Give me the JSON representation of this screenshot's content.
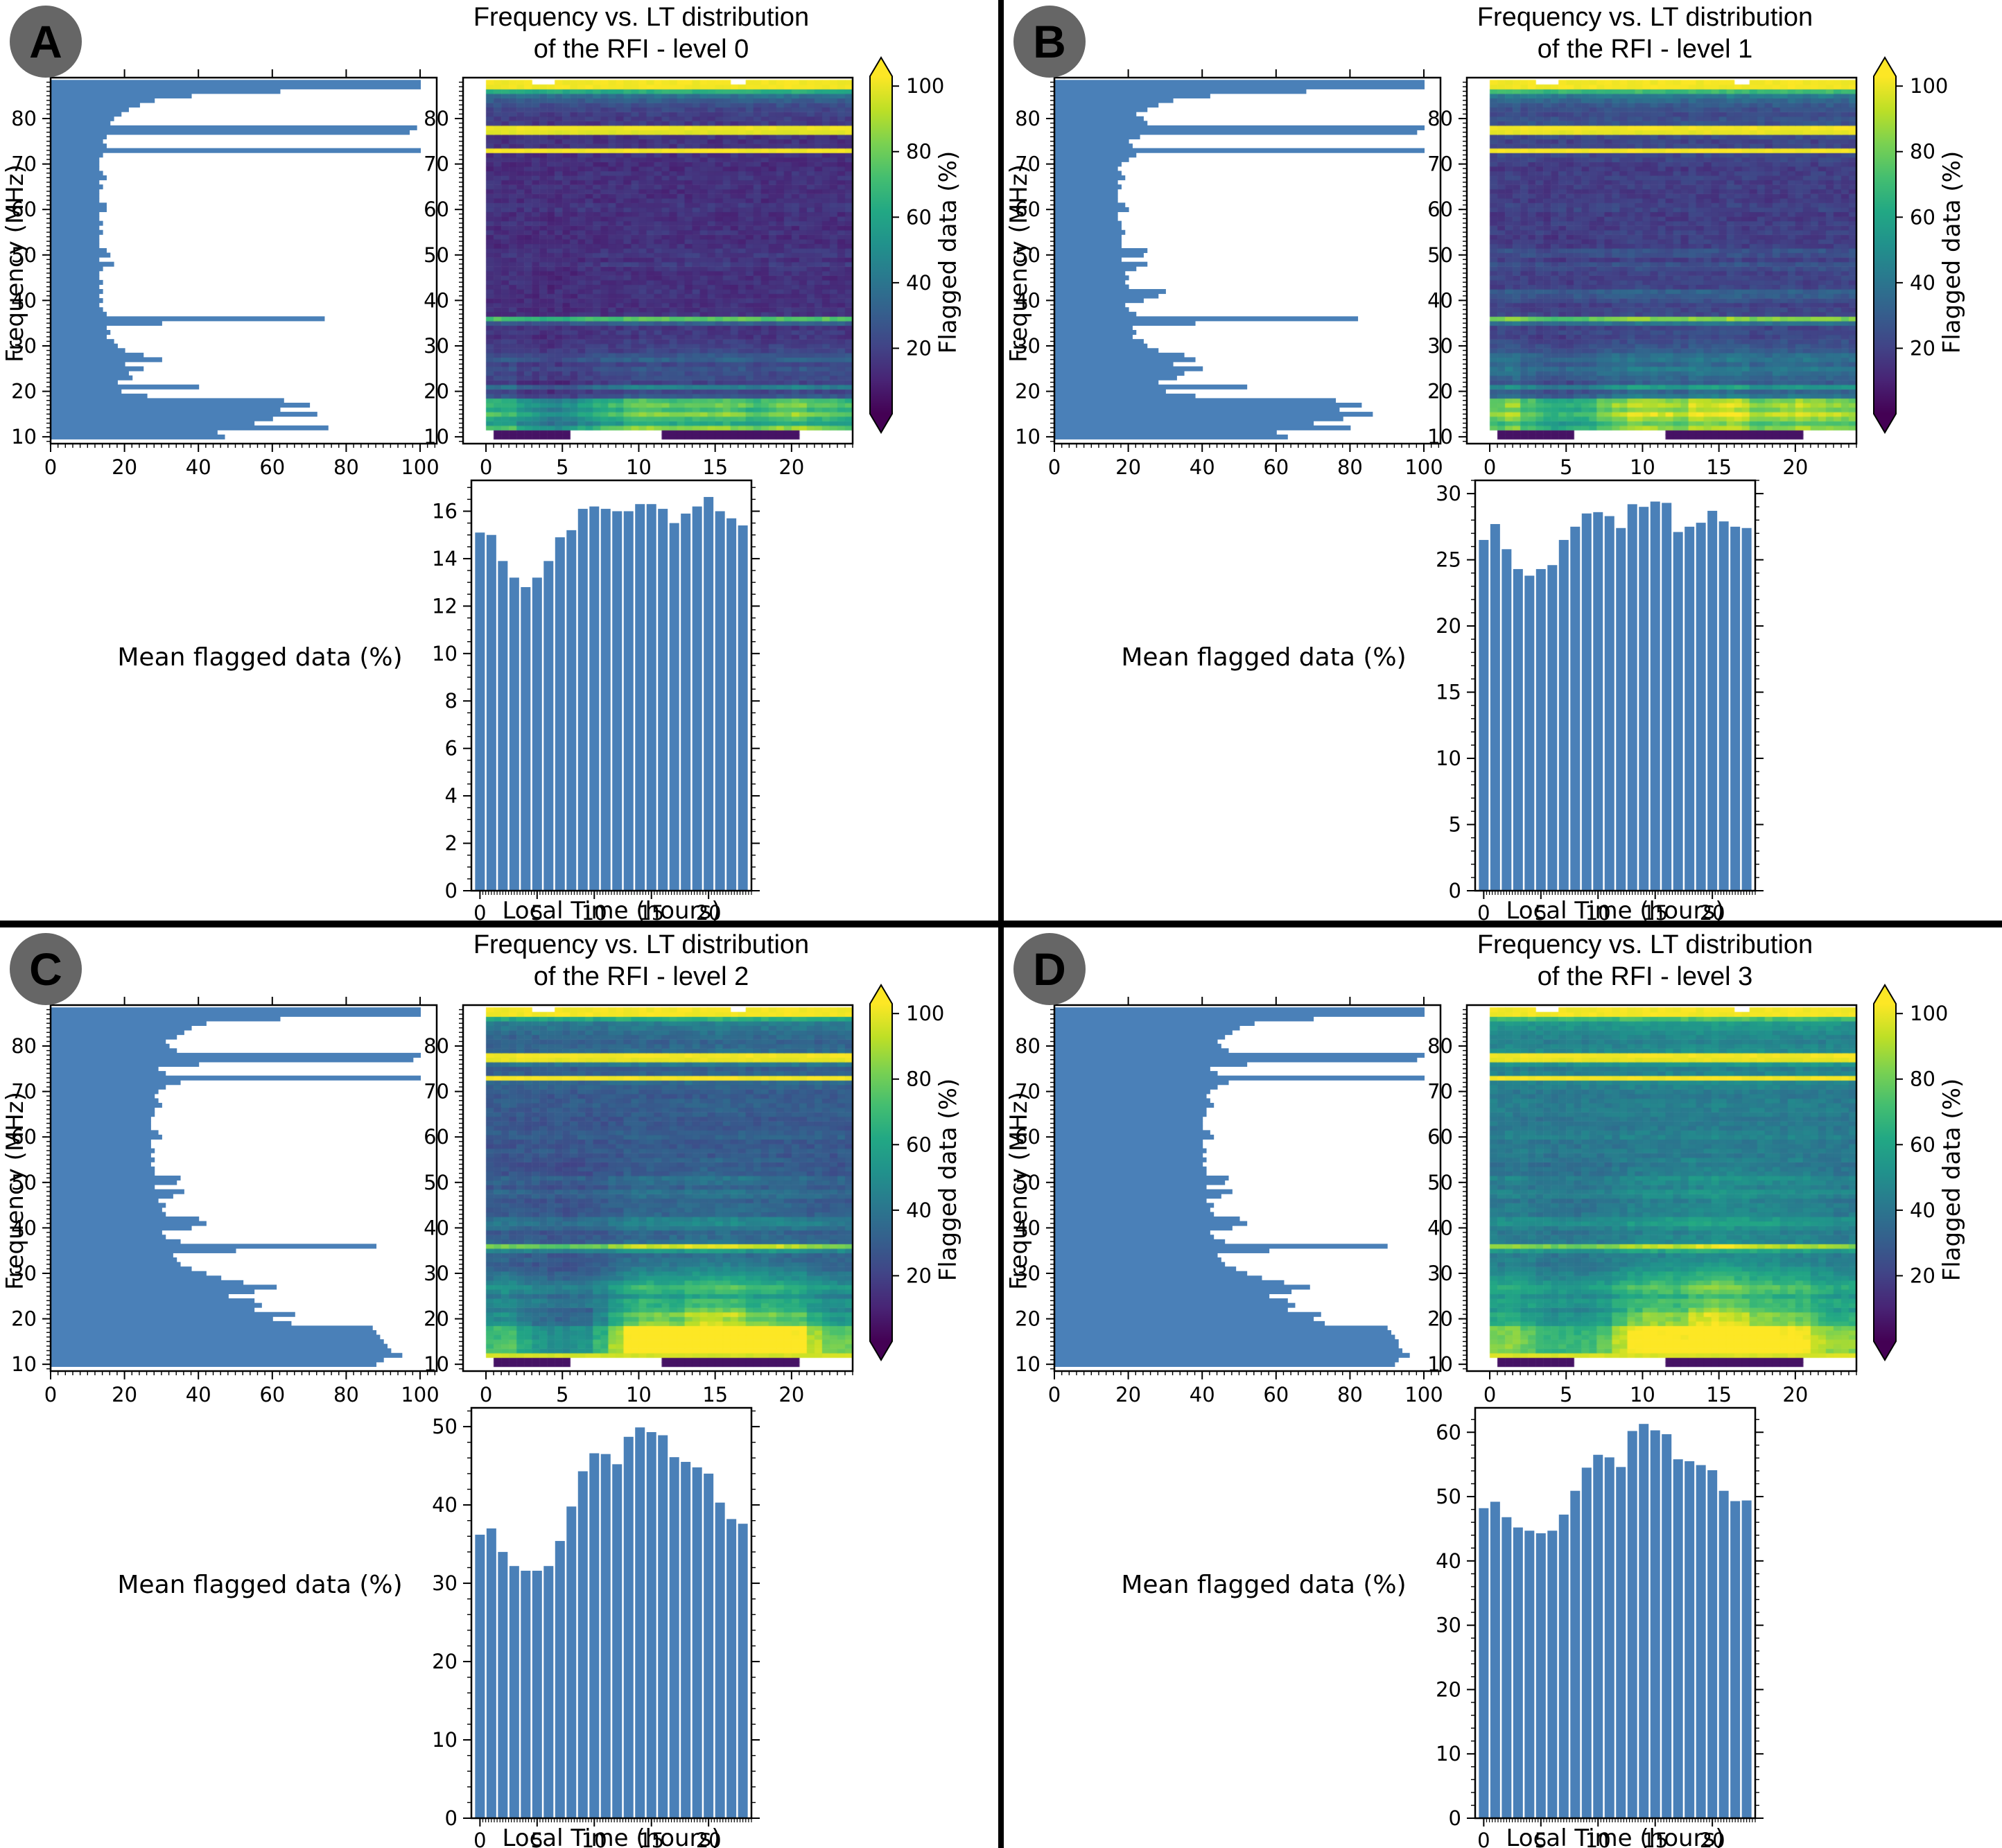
{
  "shared": {
    "freq_label": "Frequency (MHz)",
    "time_label": "Local Time (hours)",
    "mean_label": "Mean flagged data (%)",
    "colorbar_label": "Flagged data (%)",
    "colorbar_ticks": [
      20,
      40,
      60,
      80,
      100
    ],
    "colorbar_range": [
      0,
      100
    ],
    "left_xticks": [
      0,
      20,
      40,
      60,
      80,
      100
    ],
    "freq_ticks": [
      10,
      20,
      30,
      40,
      50,
      60,
      70,
      80
    ],
    "time_ticks": [
      0,
      5,
      10,
      15,
      20
    ],
    "freq_mhz": [
      10,
      11,
      12,
      13,
      14,
      15,
      16,
      17,
      18,
      19,
      20,
      21,
      22,
      23,
      24,
      25,
      26,
      27,
      28,
      29,
      30,
      31,
      32,
      33,
      34,
      35,
      36,
      37,
      38,
      39,
      40,
      41,
      42,
      43,
      44,
      45,
      46,
      47,
      48,
      49,
      50,
      51,
      52,
      53,
      54,
      55,
      56,
      57,
      58,
      59,
      60,
      61,
      62,
      63,
      64,
      65,
      66,
      67,
      68,
      69,
      70,
      71,
      72,
      73,
      74,
      75,
      76,
      77,
      78,
      79,
      80,
      81,
      82,
      83,
      84,
      85,
      86,
      87,
      88
    ],
    "colors": {
      "bar": "#4a80b8",
      "badge": "#666666",
      "frame": "#000000"
    },
    "heatmap_hints": {
      "type": "heatmap",
      "colormap": "viridis",
      "time_bins": 48,
      "time_range_hours": [
        0,
        24
      ],
      "low_freq_missing_below_mhz": 11.5,
      "low_freq_present_hours": [
        [
          0.7,
          5.5
        ],
        [
          11.5,
          20.3
        ]
      ],
      "top_band_gaps_hours": [
        [
          3.2,
          4.6
        ],
        [
          15.8,
          17.2
        ]
      ],
      "diurnal_coupling": [
        [
          22,
          2.0
        ],
        [
          32,
          1.2
        ],
        [
          55,
          0.65
        ],
        [
          100,
          0.18
        ]
      ]
    }
  },
  "chart_data": [
    {
      "panel": "A",
      "title_line1": "Frequency vs. LT distribution",
      "title_line2": "of the RFI - level 0",
      "type": [
        "bar-horizontal",
        "heatmap",
        "bar"
      ],
      "flag_vs_freq": [
        47,
        45,
        75,
        55,
        60,
        72,
        62,
        70,
        63,
        26,
        19,
        40,
        18,
        22,
        21,
        25,
        20,
        30,
        25,
        20,
        18,
        17,
        15,
        16,
        15,
        30,
        74,
        15,
        14,
        13,
        14,
        13,
        14,
        13,
        14,
        13,
        13,
        14,
        17,
        13,
        16,
        15,
        13,
        13,
        13,
        14,
        13,
        14,
        13,
        13,
        15,
        15,
        13,
        13,
        13,
        14,
        13,
        15,
        14,
        13,
        13,
        13,
        14,
        100,
        15,
        14,
        15,
        97,
        99,
        16,
        17,
        19,
        21,
        24,
        28,
        38,
        62,
        100,
        100
      ],
      "hourly_mean": [
        15.1,
        15.0,
        13.9,
        13.2,
        12.8,
        13.2,
        13.9,
        14.9,
        15.2,
        16.1,
        16.2,
        16.1,
        16.0,
        16.0,
        16.3,
        16.3,
        16.1,
        15.5,
        15.9,
        16.2,
        16.6,
        16.0,
        15.7,
        15.4
      ],
      "hist_yticks": [
        0,
        2,
        4,
        6,
        8,
        10,
        12,
        14,
        16
      ],
      "hist_ymax": 17.3,
      "hist_minor": 0.5
    },
    {
      "panel": "B",
      "title_line1": "Frequency vs. LT distribution",
      "title_line2": "of the RFI - level 1",
      "type": [
        "bar-horizontal",
        "heatmap",
        "bar"
      ],
      "flag_vs_freq": [
        63,
        60,
        80,
        70,
        78,
        86,
        77,
        83,
        76,
        38,
        30,
        52,
        28,
        33,
        35,
        40,
        32,
        38,
        35,
        28,
        25,
        24,
        21,
        22,
        21,
        38,
        82,
        22,
        20,
        19,
        24,
        28,
        30,
        20,
        19,
        20,
        19,
        22,
        25,
        18,
        24,
        25,
        18,
        18,
        18,
        19,
        18,
        18,
        17,
        17,
        20,
        19,
        17,
        17,
        17,
        18,
        17,
        19,
        18,
        17,
        18,
        20,
        22,
        100,
        21,
        20,
        23,
        98,
        100,
        25,
        24,
        22,
        25,
        28,
        32,
        42,
        68,
        100,
        100
      ],
      "hourly_mean": [
        26.5,
        27.7,
        25.8,
        24.3,
        23.8,
        24.3,
        24.6,
        26.5,
        27.5,
        28.5,
        28.6,
        28.3,
        27.4,
        29.2,
        29.0,
        29.4,
        29.3,
        27.1,
        27.5,
        27.8,
        28.7,
        27.9,
        27.5,
        27.4
      ],
      "hist_yticks": [
        0,
        5,
        10,
        15,
        20,
        25,
        30
      ],
      "hist_ymax": 31,
      "hist_minor": 1
    },
    {
      "panel": "C",
      "title_line1": "Frequency vs. LT distribution",
      "title_line2": "of the RFI - level 2",
      "type": [
        "bar-horizontal",
        "heatmap",
        "bar"
      ],
      "flag_vs_freq": [
        88,
        90,
        95,
        92,
        91,
        90,
        89,
        88,
        87,
        65,
        60,
        66,
        55,
        57,
        55,
        48,
        55,
        61,
        52,
        46,
        42,
        38,
        35,
        34,
        33,
        50,
        88,
        35,
        31,
        30,
        38,
        42,
        40,
        31,
        30,
        31,
        29,
        33,
        36,
        28,
        34,
        35,
        28,
        28,
        27,
        28,
        27,
        28,
        27,
        27,
        30,
        29,
        27,
        27,
        27,
        28,
        28,
        30,
        29,
        28,
        29,
        31,
        35,
        100,
        31,
        29,
        40,
        98,
        100,
        34,
        32,
        31,
        34,
        36,
        38,
        42,
        62,
        100,
        100
      ],
      "hourly_mean": [
        36.2,
        37.0,
        34.0,
        32.2,
        31.6,
        31.6,
        32.2,
        35.4,
        39.8,
        44.3,
        46.6,
        46.5,
        45.2,
        48.7,
        49.9,
        49.3,
        48.9,
        46.1,
        45.5,
        44.8,
        44.0,
        40.3,
        38.2,
        37.6
      ],
      "hist_yticks": [
        0,
        10,
        20,
        30,
        40,
        50
      ],
      "hist_ymax": 52.4,
      "hist_minor": 2
    },
    {
      "panel": "D",
      "title_line1": "Frequency vs. LT distribution",
      "title_line2": "of the RFI - level 3",
      "type": [
        "bar-horizontal",
        "heatmap",
        "bar"
      ],
      "flag_vs_freq": [
        92,
        93,
        96,
        94,
        93,
        93,
        92,
        91,
        90,
        73,
        70,
        72,
        63,
        65,
        63,
        58,
        64,
        69,
        62,
        56,
        52,
        49,
        46,
        45,
        44,
        58,
        90,
        46,
        43,
        42,
        48,
        52,
        50,
        43,
        42,
        43,
        41,
        45,
        48,
        41,
        46,
        47,
        41,
        41,
        40,
        41,
        40,
        41,
        40,
        40,
        43,
        42,
        40,
        40,
        40,
        41,
        41,
        43,
        42,
        41,
        42,
        44,
        47,
        100,
        44,
        42,
        52,
        98,
        100,
        47,
        45,
        44,
        46,
        48,
        50,
        54,
        70,
        100,
        100
      ],
      "hourly_mean": [
        48.2,
        49.2,
        46.8,
        45.2,
        44.7,
        44.3,
        44.7,
        47.2,
        50.9,
        54.5,
        56.5,
        56.1,
        54.6,
        60.2,
        61.3,
        60.3,
        59.7,
        55.8,
        55.5,
        54.9,
        54.1,
        50.9,
        49.3,
        49.4
      ],
      "hist_yticks": [
        0,
        10,
        20,
        30,
        40,
        50,
        60
      ],
      "hist_ymax": 63.8,
      "hist_minor": 2
    }
  ]
}
